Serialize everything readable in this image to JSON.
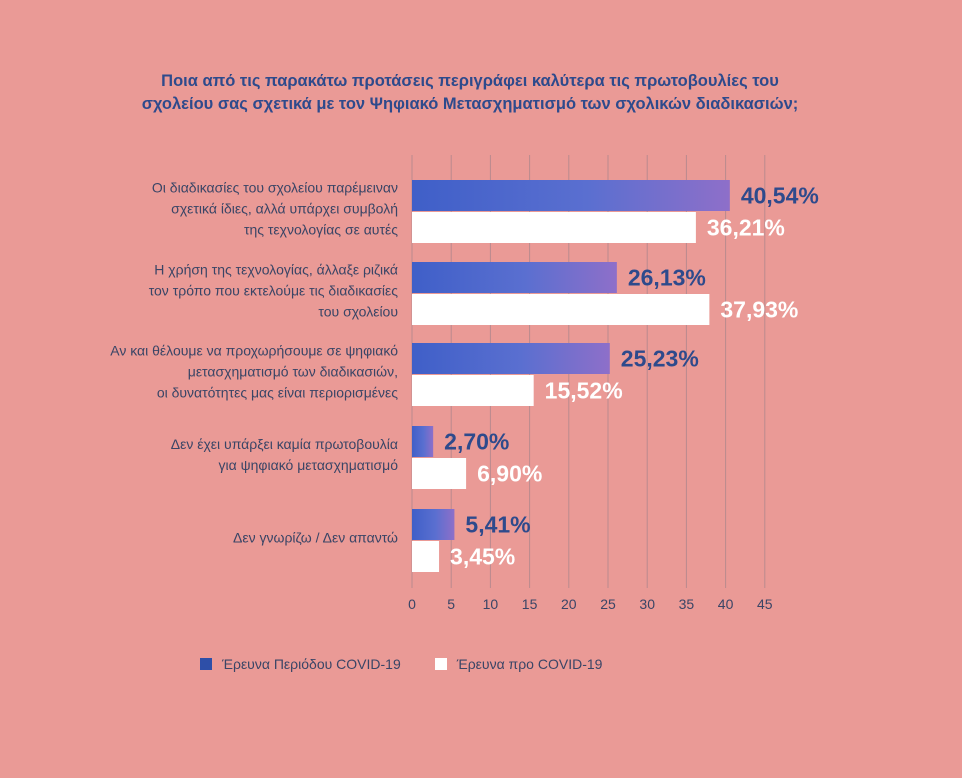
{
  "title": {
    "line1": "Ποια από τις παρακάτω προτάσεις  περιγράφει καλύτερα τις πρωτοβουλίες του",
    "line2": "σχολείου σας σχετικά με τον Ψηφιακό Μετασχηματισμό των σχολικών διαδικασιών;"
  },
  "colors": {
    "background": "#ea9a96",
    "series1": "#4a63c6",
    "series1_label": "#2e4a8c",
    "series2": "#ffffff",
    "series2_label": "#ffffff",
    "grid": "#b98a8e"
  },
  "chart_data": {
    "type": "bar",
    "orientation": "horizontal",
    "categories": [
      [
        "Οι διαδικασίες του σχολείου παρέμειναν",
        "σχετικά ίδιες, αλλά υπάρχει συμβολή",
        "της τεχνολογίας σε αυτές"
      ],
      [
        "Η χρήση της τεχνολογίας, άλλαξε ριζικά",
        "τον τρόπο που εκτελούμε τις διαδικασίες",
        "του σχολείου"
      ],
      [
        "Αν και θέλουμε να προχωρήσουμε σε ψηφιακό",
        "μετασχηματισμό των διαδικασιών,",
        "οι δυνατότητες μας είναι περιορισμένες"
      ],
      [
        "Δεν έχει υπάρξει καμία πρωτοβουλία",
        "για ψηφιακό μετασχηματισμό"
      ],
      [
        "Δεν γνωρίζω / Δεν απαντώ"
      ]
    ],
    "series": [
      {
        "name": "Έρευνα Περιόδου COVID-19",
        "values": [
          40.54,
          26.13,
          25.23,
          2.7,
          5.41
        ],
        "labels": [
          "40,54%",
          "26,13%",
          "25,23%",
          "2,70%",
          "5,41%"
        ]
      },
      {
        "name": "Έρευνα προ COVID-19",
        "values": [
          36.21,
          37.93,
          15.52,
          6.9,
          3.45
        ],
        "labels": [
          "36,21%",
          "37,93%",
          "15,52%",
          "6,90%",
          "3,45%"
        ]
      }
    ],
    "xlim": [
      0,
      45
    ],
    "xticks": [
      "0",
      "5",
      "10",
      "15",
      "20",
      "25",
      "30",
      "35",
      "40",
      "45"
    ],
    "grid": true,
    "legend_position": "bottom"
  }
}
